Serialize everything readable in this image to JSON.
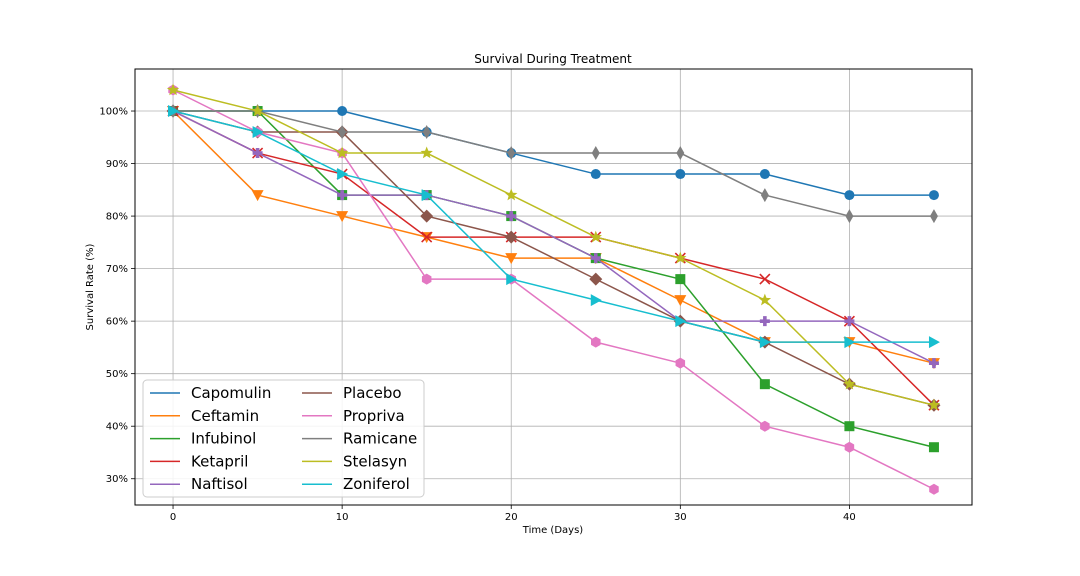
{
  "chart_data": {
    "type": "line",
    "title": "Survival During Treatment",
    "xlabel": "Time (Days)",
    "ylabel": "Survival Rate (%)",
    "x": [
      0,
      5,
      10,
      15,
      20,
      25,
      30,
      35,
      40,
      45
    ],
    "xlim": [
      -2.25,
      47.25
    ],
    "ylim": [
      25,
      108
    ],
    "x_ticks": [
      0,
      10,
      20,
      30,
      40
    ],
    "y_ticks": [
      30,
      40,
      50,
      60,
      70,
      80,
      90,
      100
    ],
    "y_tick_labels": [
      "30%",
      "40%",
      "50%",
      "60%",
      "70%",
      "80%",
      "90%",
      "100%"
    ],
    "grid": true,
    "legend_position": "lower-left",
    "legend_columns": 2,
    "series": [
      {
        "name": "Capomulin",
        "color": "#1f77b4",
        "marker": "circle",
        "values": [
          100,
          100,
          100,
          96,
          92,
          88,
          88,
          88,
          84,
          84
        ]
      },
      {
        "name": "Ceftamin",
        "color": "#ff7f0e",
        "marker": "triangle-down",
        "values": [
          100,
          84,
          80,
          76,
          72,
          72,
          64,
          56,
          56,
          52
        ]
      },
      {
        "name": "Infubinol",
        "color": "#2ca02c",
        "marker": "square",
        "values": [
          100,
          100,
          84,
          84,
          80,
          72,
          68,
          48,
          40,
          36
        ]
      },
      {
        "name": "Ketapril",
        "color": "#d62728",
        "marker": "x",
        "values": [
          100,
          92,
          88,
          76,
          76,
          76,
          72,
          68,
          60,
          44
        ]
      },
      {
        "name": "Naftisol",
        "color": "#9467bd",
        "marker": "plus",
        "values": [
          100,
          92,
          84,
          84,
          80,
          72,
          60,
          60,
          60,
          52
        ]
      },
      {
        "name": "Placebo",
        "color": "#8c564b",
        "marker": "diamond",
        "values": [
          100,
          96,
          96,
          80,
          76,
          68,
          60,
          56,
          48,
          44
        ]
      },
      {
        "name": "Propriva",
        "color": "#e377c2",
        "marker": "hexagon",
        "values": [
          104,
          96,
          92,
          68,
          68,
          56,
          52,
          40,
          36,
          28
        ]
      },
      {
        "name": "Ramicane",
        "color": "#7f7f7f",
        "marker": "thin-diamond",
        "values": [
          100,
          100,
          96,
          96,
          92,
          92,
          92,
          84,
          80,
          80
        ]
      },
      {
        "name": "Stelasyn",
        "color": "#bcbd22",
        "marker": "star",
        "values": [
          104,
          100,
          92,
          92,
          84,
          76,
          72,
          64,
          48,
          44
        ]
      },
      {
        "name": "Zoniferol",
        "color": "#17becf",
        "marker": "triangle-right",
        "values": [
          100,
          96,
          88,
          84,
          68,
          64,
          60,
          56,
          56,
          56
        ]
      }
    ]
  }
}
